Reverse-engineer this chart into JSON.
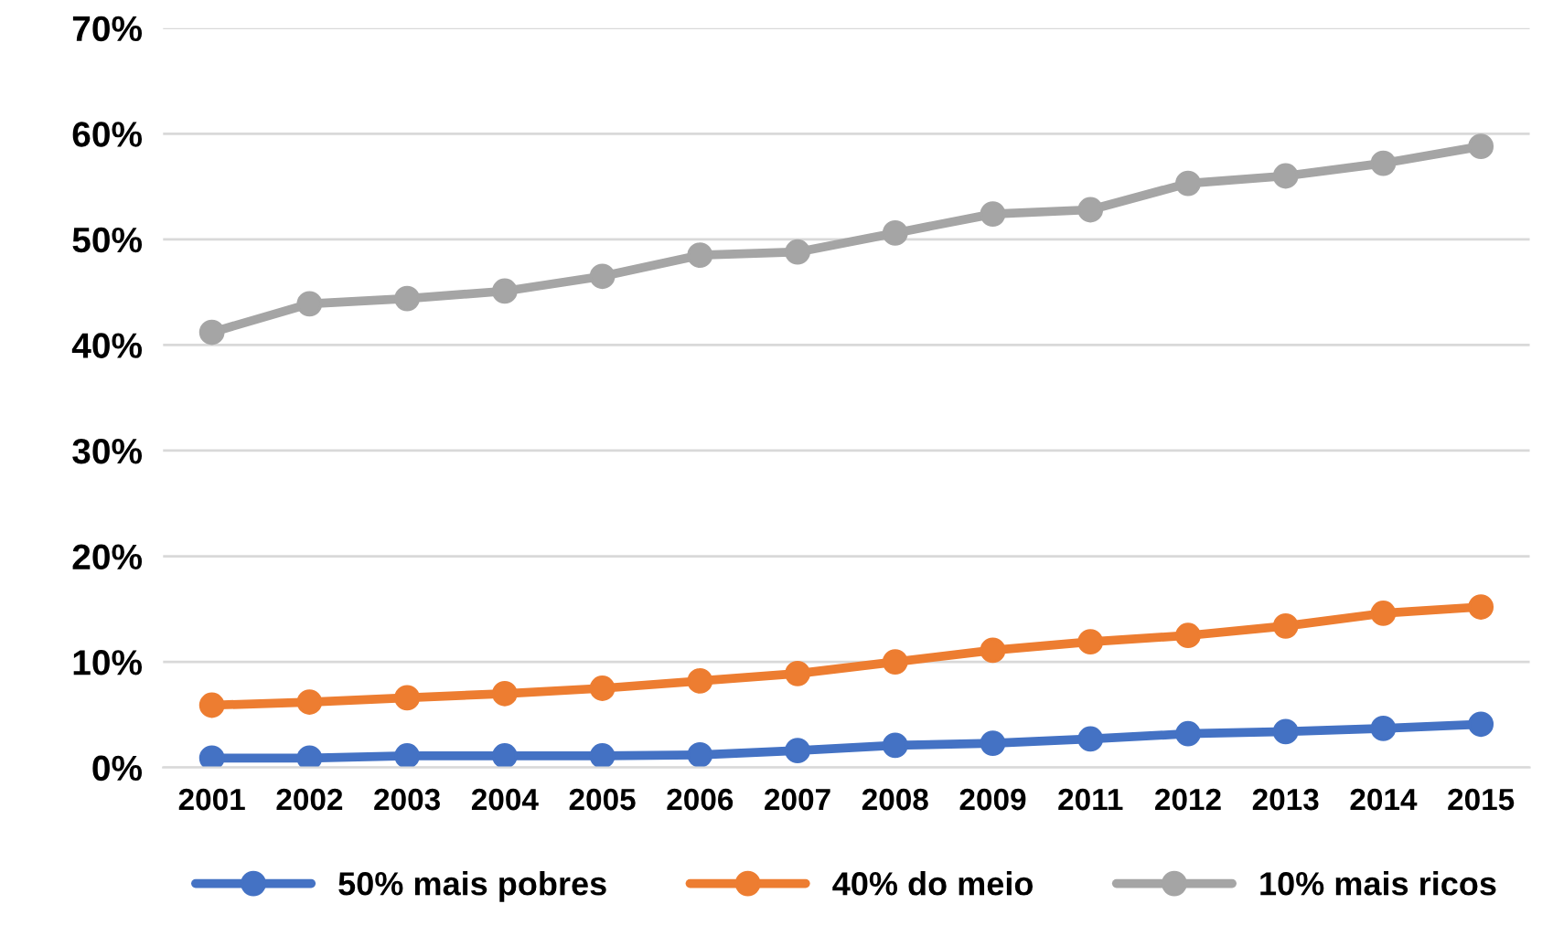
{
  "chart_data": {
    "type": "line",
    "categories": [
      "2001",
      "2002",
      "2003",
      "2004",
      "2005",
      "2006",
      "2007",
      "2008",
      "2009",
      "2011",
      "2012",
      "2013",
      "2014",
      "2015"
    ],
    "series": [
      {
        "name": "50% mais pobres",
        "color": "#4472c4",
        "values": [
          0.9,
          0.9,
          1.1,
          1.1,
          1.1,
          1.2,
          1.6,
          2.1,
          2.3,
          2.7,
          3.2,
          3.4,
          3.7,
          4.1
        ]
      },
      {
        "name": "40% do meio",
        "color": "#ed7d31",
        "values": [
          5.9,
          6.2,
          6.6,
          7.0,
          7.5,
          8.2,
          8.9,
          10.0,
          11.1,
          11.9,
          12.5,
          13.4,
          14.6,
          15.2
        ]
      },
      {
        "name": "10% mais ricos",
        "color": "#a5a5a5",
        "values": [
          41.2,
          43.9,
          44.4,
          45.1,
          46.5,
          48.5,
          48.8,
          50.6,
          52.4,
          52.8,
          55.3,
          56.0,
          57.2,
          58.8
        ]
      }
    ],
    "ylim": [
      0,
      70
    ],
    "yticks": [
      {
        "value": 0,
        "label": "0%"
      },
      {
        "value": 10,
        "label": "10%"
      },
      {
        "value": 20,
        "label": "20%"
      },
      {
        "value": 30,
        "label": "30%"
      },
      {
        "value": 40,
        "label": "40%"
      },
      {
        "value": 50,
        "label": "50%"
      },
      {
        "value": 60,
        "label": "60%"
      },
      {
        "value": 70,
        "label": "70%"
      }
    ],
    "grid": "y",
    "legend": "bottom",
    "marker": "circle",
    "line_style": "solid"
  }
}
